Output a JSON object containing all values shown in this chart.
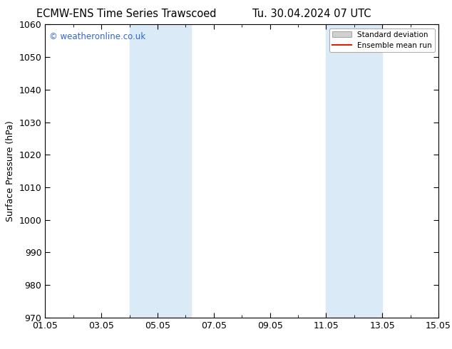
{
  "title_left": "ECMW-ENS Time Series Trawscoed",
  "title_right": "Tu. 30.04.2024 07 UTC",
  "ylabel": "Surface Pressure (hPa)",
  "ylim": [
    970,
    1060
  ],
  "yticks": [
    970,
    980,
    990,
    1000,
    1010,
    1020,
    1030,
    1040,
    1050,
    1060
  ],
  "xtick_labels": [
    "01.05",
    "03.05",
    "05.05",
    "07.05",
    "09.05",
    "11.05",
    "13.05",
    "15.05"
  ],
  "xtick_positions": [
    0,
    2,
    4,
    6,
    8,
    10,
    12,
    14
  ],
  "xlim": [
    0,
    14
  ],
  "shaded_bands": [
    {
      "x_start": 3.0,
      "x_end": 5.2,
      "color": "#daeaf7"
    },
    {
      "x_start": 10.0,
      "x_end": 12.0,
      "color": "#daeaf7"
    }
  ],
  "watermark": "© weatheronline.co.uk",
  "watermark_color": "#3366cc",
  "legend_std_color": "#d0d0d0",
  "legend_mean_color": "#dd2200",
  "bg_color": "#ffffff",
  "plot_bg_color": "#ffffff",
  "border_color": "#000000",
  "title_fontsize": 10.5,
  "axis_fontsize": 9,
  "tick_fontsize": 9
}
